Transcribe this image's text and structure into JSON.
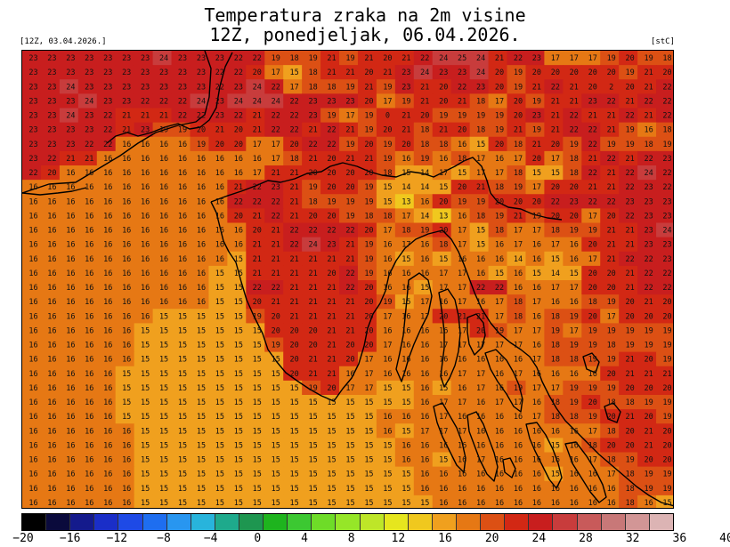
{
  "header": {
    "title_line1": "Temperatura zraka na 2m visine",
    "title_line2": "12Z, ponedjeljak, 06.04.2026.",
    "run_label": "[12Z, 03.04.2026.]",
    "unit_label": "[stC]"
  },
  "colorbar": {
    "colors": [
      "#000000",
      "#0a0a3c",
      "#141a8c",
      "#1a2ec8",
      "#1e4ae6",
      "#1e6ef0",
      "#2896f0",
      "#28b4dc",
      "#1eaa8c",
      "#1e9650",
      "#1eb41e",
      "#3cc832",
      "#6edc28",
      "#96e628",
      "#bee628",
      "#e6e61e",
      "#f0c81e",
      "#f0a01e",
      "#e67814",
      "#dc5014",
      "#d22814",
      "#c81e1e",
      "#c83c3c",
      "#c85a5a",
      "#c87878",
      "#d29696",
      "#dcb4b4"
    ],
    "tick_labels": [
      "−20",
      "−16",
      "−12",
      "−8",
      "−4",
      "0",
      "4",
      "8",
      "12",
      "16",
      "20",
      "24",
      "28",
      "32",
      "36",
      "40"
    ]
  },
  "map": {
    "grid_values": [
      "23 23 23 23 23 23 23 24 23 23 23 22 22 19 18 19 21 19 21 20 21 22 24 25 24 21 22 23 17 17 17 19 20 19 18",
      "23 23 23 23 23 23 23 23 23 23 22 22 20 17 15 18 21 21 20 21 23 24 23 23 24 20 19 20 20 20 20 20 19 21 20",
      "23 23 24 23 23 23 23 23 23 23 22 23 24 22 17 18 18 19 21 19 23 21 20 22 23 20 19 21 22 21 20 2 20 21 22",
      "23 23 23 24 23 23 22 22 22 24 23 24 24 24 22 23 23 23 20 17 19 21 20 21 18 17 20 19 21 21 23 22 21 22 22",
      "23 23 24 23 22 21 21 21 22 22 23 22 21 22 22 23 19 17 19 0 21 20 19 19 19 19 20 23 21 22 21 21 22 21 22",
      "23 23 23 23 22 21 23 19 19 20 21 20 21 22 22 21 22 21 19 20 21 18 21 20 18 19 21 19 21 22 22 21 19 16 18",
      "23 23 23 22 22 16 16 16 16 19 20 20 17 17 20 22 22 19 20 19 20 18 18 16 15 20 18 21 20 19 22 19 19 18 19",
      "23 22 21 21 16 16 16 16 16 16 16 16 16 17 18 21 20 21 21 19 16 19 16 18 17 16 17 20 17 18 21 22 21 22 23",
      "22 20 16 16 16 16 16 16 16 16 16 16 17 21 21 20 20 20 20 18 15 14 17 15 17 17 18 15 15 18 22 21 22 24 22",
      "16 16 16 16 16 16 16 16 16 16 16 21 22 23 21 19 20 20 19 15 14 14 15 20 21 18 19 17 20 20 21 21 22 23 22",
      "16 16 16 16 16 16 16 16 16 16 16 22 22 22 21 18 19 19 19 15 13 16 20 19 19 20 20 20 22 23 22 22 23 23 23",
      "16 16 16 16 16 16 16 16 16 16 16 20 21 22 21 20 20 19 18 18 17 14 13 16 18 19 21 19 20 20 17 20 22 23 23",
      "16 16 16 16 16 16 16 16 16 16 16 16 20 21 22 22 22 22 20 17 18 19 20 17 15 18 17 17 18 19 19 21 21 23 24",
      "16 16 16 16 16 16 16 16 16 16 16 16 21 21 22 24 23 21 19 16 17 16 18 17 15 16 17 16 17 16 20 21 21 23 23",
      "16 16 16 16 16 16 16 16 16 16 16 15 21 21 21 21 21 21 19 16 15 16 15 16 16 16 14 16 15 16 17 21 22 22 23",
      "16 16 16 16 16 16 16 16 16 16 15 15 21 21 21 21 20 22 19 16 16 16 17 17 16 15 16 15 14 15 20 20 21 22 22",
      "16 16 16 16 16 16 16 16 16 16 15 15 22 22 21 21 21 22 20 16 16 15 17 17 22 22 16 16 17 17 20 20 21 22 22",
      "16 16 16 16 16 16 16 16 16 16 15 15 20 21 21 21 21 21 20 19 15 17 16 17 16 17 18 17 16 16 18 19 20 21 20",
      "16 16 16 16 16 16 16 15 15 15 15 15 19 20 21 21 21 21 20 17 16 17 20 21 21 17 18 16 18 19 20 17 20 20 20",
      "16 16 16 16 16 16 15 15 15 15 15 15 15 20 20 20 21 21 20 16 16 16 16 17 20 19 17 17 19 17 19 19 19 19 19",
      "16 16 16 16 16 16 15 15 15 15 15 15 15 19 20 20 21 20 20 17 16 16 17 17 17 17 17 16 18 19 19 18 19 19 19",
      "16 16 16 16 16 16 15 15 15 15 15 15 15 15 20 21 21 20 17 16 16 16 16 16 16 16 16 17 18 18 19 19 21 20 19",
      "16 16 16 16 16 15 15 15 15 15 15 15 15 15 20 21 21 16 17 16 16 16 16 17 17 16 17 16 16 16 16 20 21 21 21",
      "16 16 16 16 16 15 15 15 15 15 15 15 15 15 15 19 20 17 17 15 15 16 15 16 17 16 19 17 17 19 19 19 20 20 20",
      "16 16 16 16 16 15 15 15 15 15 15 15 15 15 15 15 15 15 15 15 15 16 17 17 16 17 17 16 18 19 20 18 18 19 19",
      "16 16 16 16 16 15 15 15 15 15 15 15 15 15 15 15 15 15 15 16 16 16 17 16 16 16 16 17 18 18 19 20 21 20 19",
      "16 16 16 16 16 16 15 15 15 15 15 15 15 15 15 15 15 15 15 16 15 17 17 17 16 16 16 16 16 16 17 18 20 21 20",
      "16 16 16 16 16 16 15 15 15 15 15 15 15 15 15 15 15 15 15 15 16 16 16 16 16 16 16 16 15 16 18 20 20 21 20",
      "16 16 16 16 16 16 15 15 15 15 15 15 15 15 15 15 15 15 15 15 16 16 15 16 17 16 16 16 16 16 17 18 19 20 20",
      "16 16 16 16 16 16 15 15 15 15 15 15 15 15 15 15 15 15 15 15 15 16 16 16 16 16 16 16 15 16 16 17 18 19 19",
      "16 16 16 16 16 16 15 15 15 15 15 15 15 15 15 15 15 15 15 15 15 16 16 16 16 16 16 16 16 16 16 16 18 19 19",
      "16 16 16 16 16 16 15 15 15 15 15 15 15 15 15 15 15 15 15 15 15 15 16 16 16 16 16 16 16 16 16 16 18 16 15"
    ]
  }
}
